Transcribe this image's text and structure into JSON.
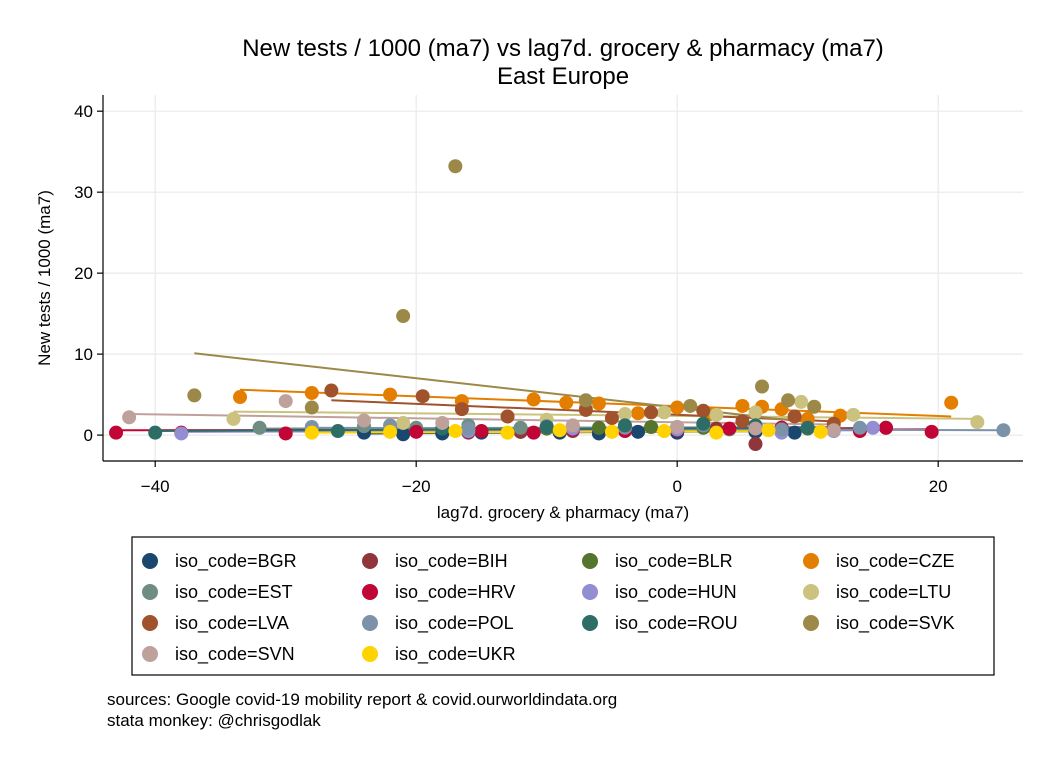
{
  "chart_data": {
    "type": "scatter",
    "title": "New tests / 1000 (ma7) vs lag7d. grocery & pharmacy (ma7)",
    "subtitle": "East Europe",
    "xlabel": "lag7d. grocery & pharmacy (ma7)",
    "ylabel": "New tests / 1000 (ma7)",
    "xlim": [
      -44,
      26.5
    ],
    "ylim": [
      -3.2,
      42
    ],
    "xticks": [
      -40,
      -20,
      0,
      20
    ],
    "yticks": [
      0,
      10,
      20,
      30,
      40
    ],
    "grid": true,
    "legend_position": "bottom",
    "series": [
      {
        "name": "iso_code=BGR",
        "color": "#1a476f",
        "points": [
          [
            -24,
            0.3
          ],
          [
            -21,
            0.1
          ],
          [
            -18,
            0.2
          ],
          [
            -15,
            0.3
          ],
          [
            -12,
            0.4
          ],
          [
            -9,
            0.3
          ],
          [
            -6,
            0.2
          ],
          [
            -3,
            0.4
          ],
          [
            0,
            0.3
          ],
          [
            3,
            0.5
          ],
          [
            6,
            0.4
          ],
          [
            9,
            0.3
          ]
        ],
        "fit": [
          [
            -24,
            0.2
          ],
          [
            9,
            0.5
          ]
        ]
      },
      {
        "name": "iso_code=BIH",
        "color": "#90353b",
        "points": [
          [
            -16,
            0.3
          ],
          [
            -12,
            0.4
          ],
          [
            -8,
            0.5
          ],
          [
            -4,
            0.6
          ],
          [
            0,
            0.7
          ],
          [
            3,
            0.8
          ],
          [
            6,
            -1.1
          ],
          [
            8,
            0.9
          ],
          [
            12,
            0.7
          ],
          [
            16,
            0.9
          ]
        ],
        "fit": [
          [
            -16,
            0.4
          ],
          [
            16,
            0.9
          ]
        ]
      },
      {
        "name": "iso_code=BLR",
        "color": "#55752f",
        "points": [
          [
            -10,
            0.8
          ],
          [
            -6,
            0.9
          ],
          [
            -2,
            1.0
          ],
          [
            2,
            0.9
          ],
          [
            6,
            1.1
          ],
          [
            10,
            0.8
          ]
        ],
        "fit": [
          [
            -10,
            0.9
          ],
          [
            10,
            0.9
          ]
        ]
      },
      {
        "name": "iso_code=CZE",
        "color": "#e37e00",
        "points": [
          [
            -33.5,
            4.7
          ],
          [
            -28,
            5.2
          ],
          [
            -22,
            5.0
          ],
          [
            -16.5,
            4.2
          ],
          [
            -11,
            4.4
          ],
          [
            -8.5,
            4.0
          ],
          [
            -6,
            3.9
          ],
          [
            -3,
            2.7
          ],
          [
            0,
            3.4
          ],
          [
            2.5,
            2.6
          ],
          [
            5,
            3.6
          ],
          [
            6.5,
            3.5
          ],
          [
            8,
            3.2
          ],
          [
            10,
            2.0
          ],
          [
            12.5,
            2.4
          ],
          [
            21,
            4.0
          ]
        ],
        "fit": [
          [
            -33.5,
            5.6
          ],
          [
            21,
            2.3
          ]
        ]
      },
      {
        "name": "iso_code=EST",
        "color": "#6e8e84",
        "points": [
          [
            -32,
            0.9
          ],
          [
            -28,
            0.7
          ],
          [
            -24,
            1.1
          ],
          [
            -20,
            0.9
          ],
          [
            -16,
            1.2
          ],
          [
            -12,
            0.9
          ],
          [
            -8,
            1.1
          ],
          [
            -4,
            0.8
          ],
          [
            0,
            1.0
          ],
          [
            4,
            0.7
          ],
          [
            8,
            0.9
          ],
          [
            12,
            0.6
          ]
        ],
        "fit": [
          [
            -32,
            0.8
          ],
          [
            12,
            1.0
          ]
        ]
      },
      {
        "name": "iso_code=HRV",
        "color": "#c10534",
        "points": [
          [
            -43,
            0.3
          ],
          [
            -38,
            0.3
          ],
          [
            -30,
            0.2
          ],
          [
            -20,
            0.4
          ],
          [
            -15,
            0.5
          ],
          [
            -11,
            0.3
          ],
          [
            -8,
            0.7
          ],
          [
            -4,
            0.5
          ],
          [
            0,
            0.6
          ],
          [
            4,
            0.8
          ],
          [
            8,
            0.9
          ],
          [
            12,
            0.7
          ],
          [
            14,
            0.5
          ],
          [
            16,
            0.9
          ],
          [
            19.5,
            0.4
          ]
        ],
        "fit": [
          [
            -43,
            0.6
          ],
          [
            19.5,
            0.7
          ]
        ]
      },
      {
        "name": "iso_code=HUN",
        "color": "#938dd2",
        "points": [
          [
            -38,
            0.2
          ],
          [
            -16,
            0.5
          ],
          [
            -8,
            0.8
          ],
          [
            0,
            0.7
          ],
          [
            8,
            0.3
          ],
          [
            12,
            0.5
          ],
          [
            15,
            0.9
          ]
        ],
        "fit": [
          [
            -38,
            0.4
          ],
          [
            15,
            0.6
          ]
        ]
      },
      {
        "name": "iso_code=LTU",
        "color": "#cac27e",
        "points": [
          [
            -34,
            2.0
          ],
          [
            -21,
            1.5
          ],
          [
            -13,
            2.3
          ],
          [
            -10,
            1.9
          ],
          [
            -7,
            3.5
          ],
          [
            -4,
            2.6
          ],
          [
            -1,
            2.8
          ],
          [
            3,
            2.5
          ],
          [
            6,
            2.8
          ],
          [
            9.5,
            4.1
          ],
          [
            13.5,
            2.5
          ],
          [
            23,
            1.6
          ]
        ],
        "fit": [
          [
            -34,
            2.9
          ],
          [
            23,
            2.0
          ]
        ]
      },
      {
        "name": "iso_code=LVA",
        "color": "#a0522d",
        "points": [
          [
            -26.5,
            5.5
          ],
          [
            -19.5,
            4.8
          ],
          [
            -16.5,
            3.2
          ],
          [
            -13,
            2.3
          ],
          [
            -7,
            3.1
          ],
          [
            -5,
            2.1
          ],
          [
            -2,
            2.8
          ],
          [
            2,
            3.0
          ],
          [
            5,
            1.7
          ],
          [
            9,
            2.3
          ],
          [
            12,
            1.4
          ]
        ],
        "fit": [
          [
            -26.5,
            4.3
          ],
          [
            12,
            1.7
          ]
        ]
      },
      {
        "name": "iso_code=POL",
        "color": "#7b92a8",
        "points": [
          [
            -28,
            1.0
          ],
          [
            -22,
            1.2
          ],
          [
            -16,
            0.8
          ],
          [
            -10,
            1.1
          ],
          [
            -4,
            0.9
          ],
          [
            2,
            1.2
          ],
          [
            8,
            0.7
          ],
          [
            14,
            0.9
          ],
          [
            25,
            0.6
          ]
        ],
        "fit": [
          [
            -28,
            0.9
          ],
          [
            25,
            0.6
          ]
        ]
      },
      {
        "name": "iso_code=ROU",
        "color": "#2d6d66",
        "points": [
          [
            -40,
            0.3
          ],
          [
            -26,
            0.5
          ],
          [
            -18,
            0.8
          ],
          [
            -10,
            1.0
          ],
          [
            -4,
            1.2
          ],
          [
            2,
            1.4
          ],
          [
            6,
            1.2
          ],
          [
            10,
            0.9
          ]
        ],
        "fit": [
          [
            -40,
            0.5
          ],
          [
            10,
            0.9
          ]
        ]
      },
      {
        "name": "iso_code=SVK",
        "color": "#9c8847",
        "points": [
          [
            -37,
            4.9
          ],
          [
            -28,
            3.4
          ],
          [
            -21,
            14.7
          ],
          [
            -17,
            33.2
          ],
          [
            -7,
            4.3
          ],
          [
            1,
            3.6
          ],
          [
            6.5,
            6.0
          ],
          [
            8.5,
            4.3
          ],
          [
            10.5,
            3.5
          ]
        ],
        "fit": [
          [
            -37,
            10.1
          ],
          [
            10.5,
            1.5
          ]
        ]
      },
      {
        "name": "iso_code=SVN",
        "color": "#bfa19c",
        "points": [
          [
            -42,
            2.2
          ],
          [
            -30,
            4.2
          ],
          [
            -24,
            1.8
          ],
          [
            -18,
            1.5
          ],
          [
            -8,
            1.2
          ],
          [
            0,
            1.0
          ],
          [
            6,
            0.8
          ],
          [
            12,
            0.6
          ]
        ],
        "fit": [
          [
            -42,
            2.6
          ],
          [
            12,
            1.3
          ]
        ]
      },
      {
        "name": "iso_code=UKR",
        "color": "#ffd200",
        "points": [
          [
            -28,
            0.3
          ],
          [
            -22,
            0.4
          ],
          [
            -17,
            0.5
          ],
          [
            -13,
            0.3
          ],
          [
            -9,
            0.6
          ],
          [
            -5,
            0.4
          ],
          [
            -1,
            0.5
          ],
          [
            3,
            0.3
          ],
          [
            7,
            0.6
          ],
          [
            11,
            0.4
          ]
        ],
        "fit": [
          [
            -28,
            0.3
          ],
          [
            11,
            0.5
          ]
        ]
      }
    ]
  },
  "notes": {
    "line1": "sources: Google covid-19 mobility report & covid.ourworldindata.org",
    "line2": "stata monkey: @chrisgodlak"
  }
}
